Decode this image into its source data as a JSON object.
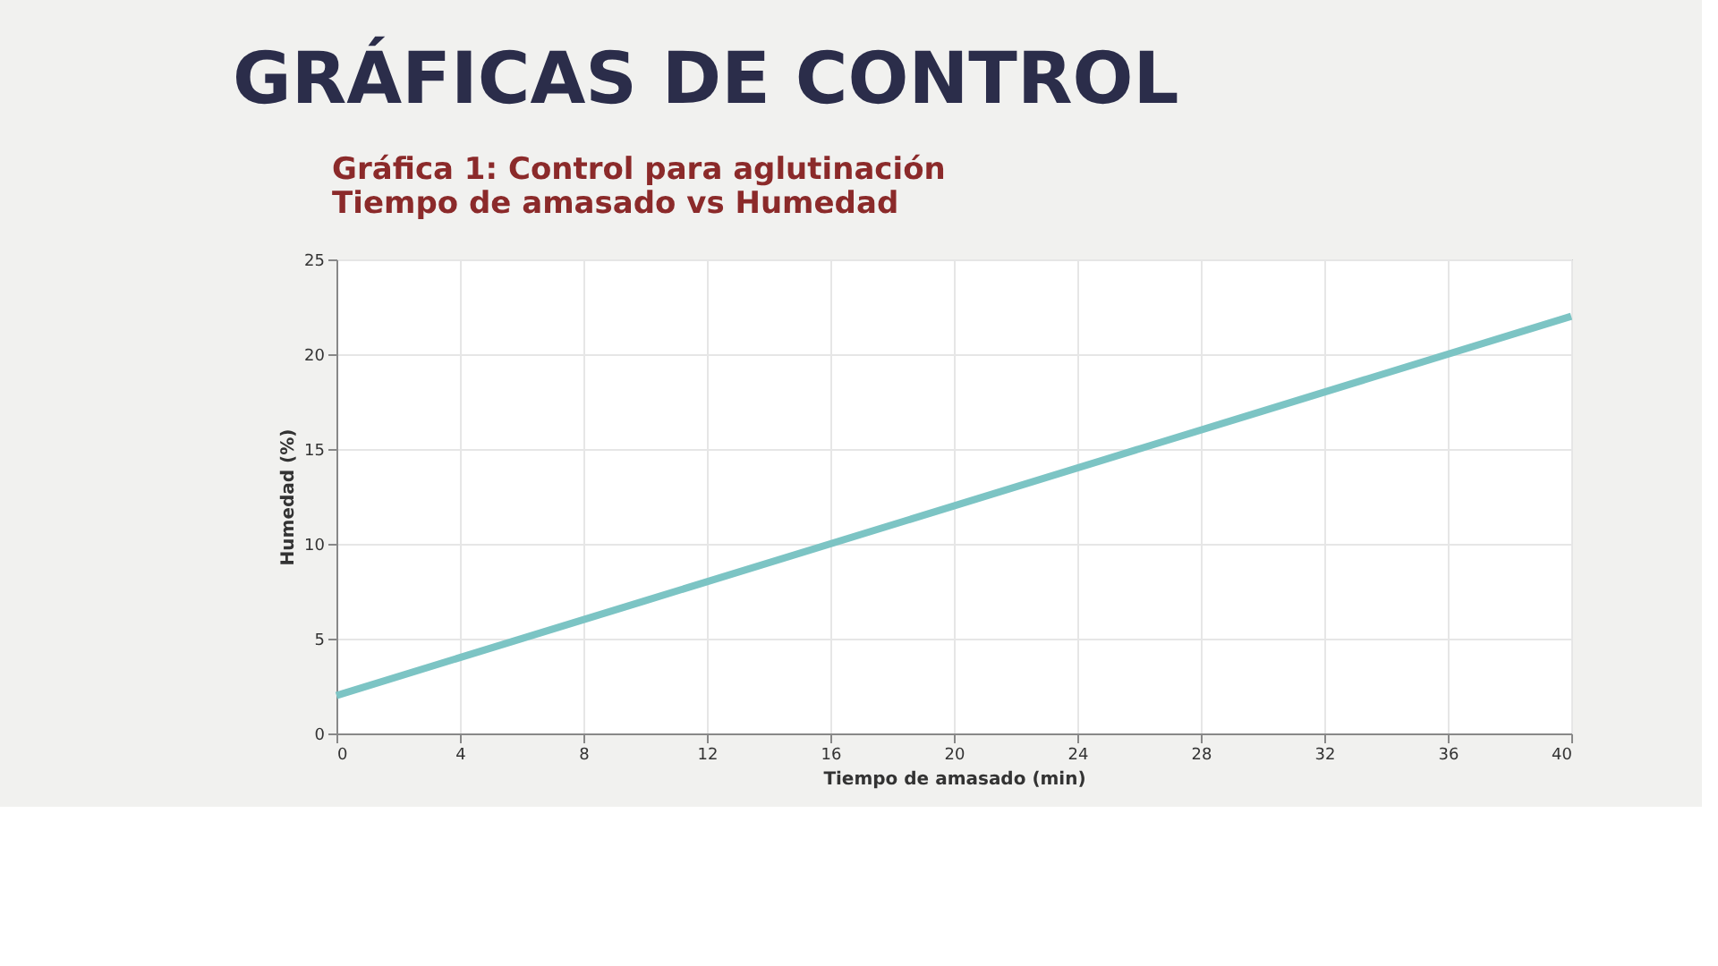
{
  "chart_data": {
    "type": "line",
    "title": "GRÁFICAS DE CONTROL",
    "subtitle": "Gráfica 1: Control  para aglutinación\nTiempo de amasado vs Humedad",
    "xlabel": "Tiempo de amasado (min)",
    "ylabel": "Humedad (%)",
    "x": [
      0,
      10,
      20,
      30,
      40
    ],
    "series": [
      {
        "color": "#7cc4c4",
        "values": [
          2,
          7,
          12,
          17,
          22
        ]
      }
    ],
    "xlim": [
      0,
      40
    ],
    "xticks": [
      0,
      4,
      8,
      12,
      16,
      20,
      24,
      28,
      32,
      36,
      40
    ],
    "ylim": [
      0,
      25
    ],
    "yticks": [
      0,
      5,
      10,
      15,
      20,
      25
    ],
    "grid": true,
    "marker": "none",
    "line_style": "solid"
  }
}
